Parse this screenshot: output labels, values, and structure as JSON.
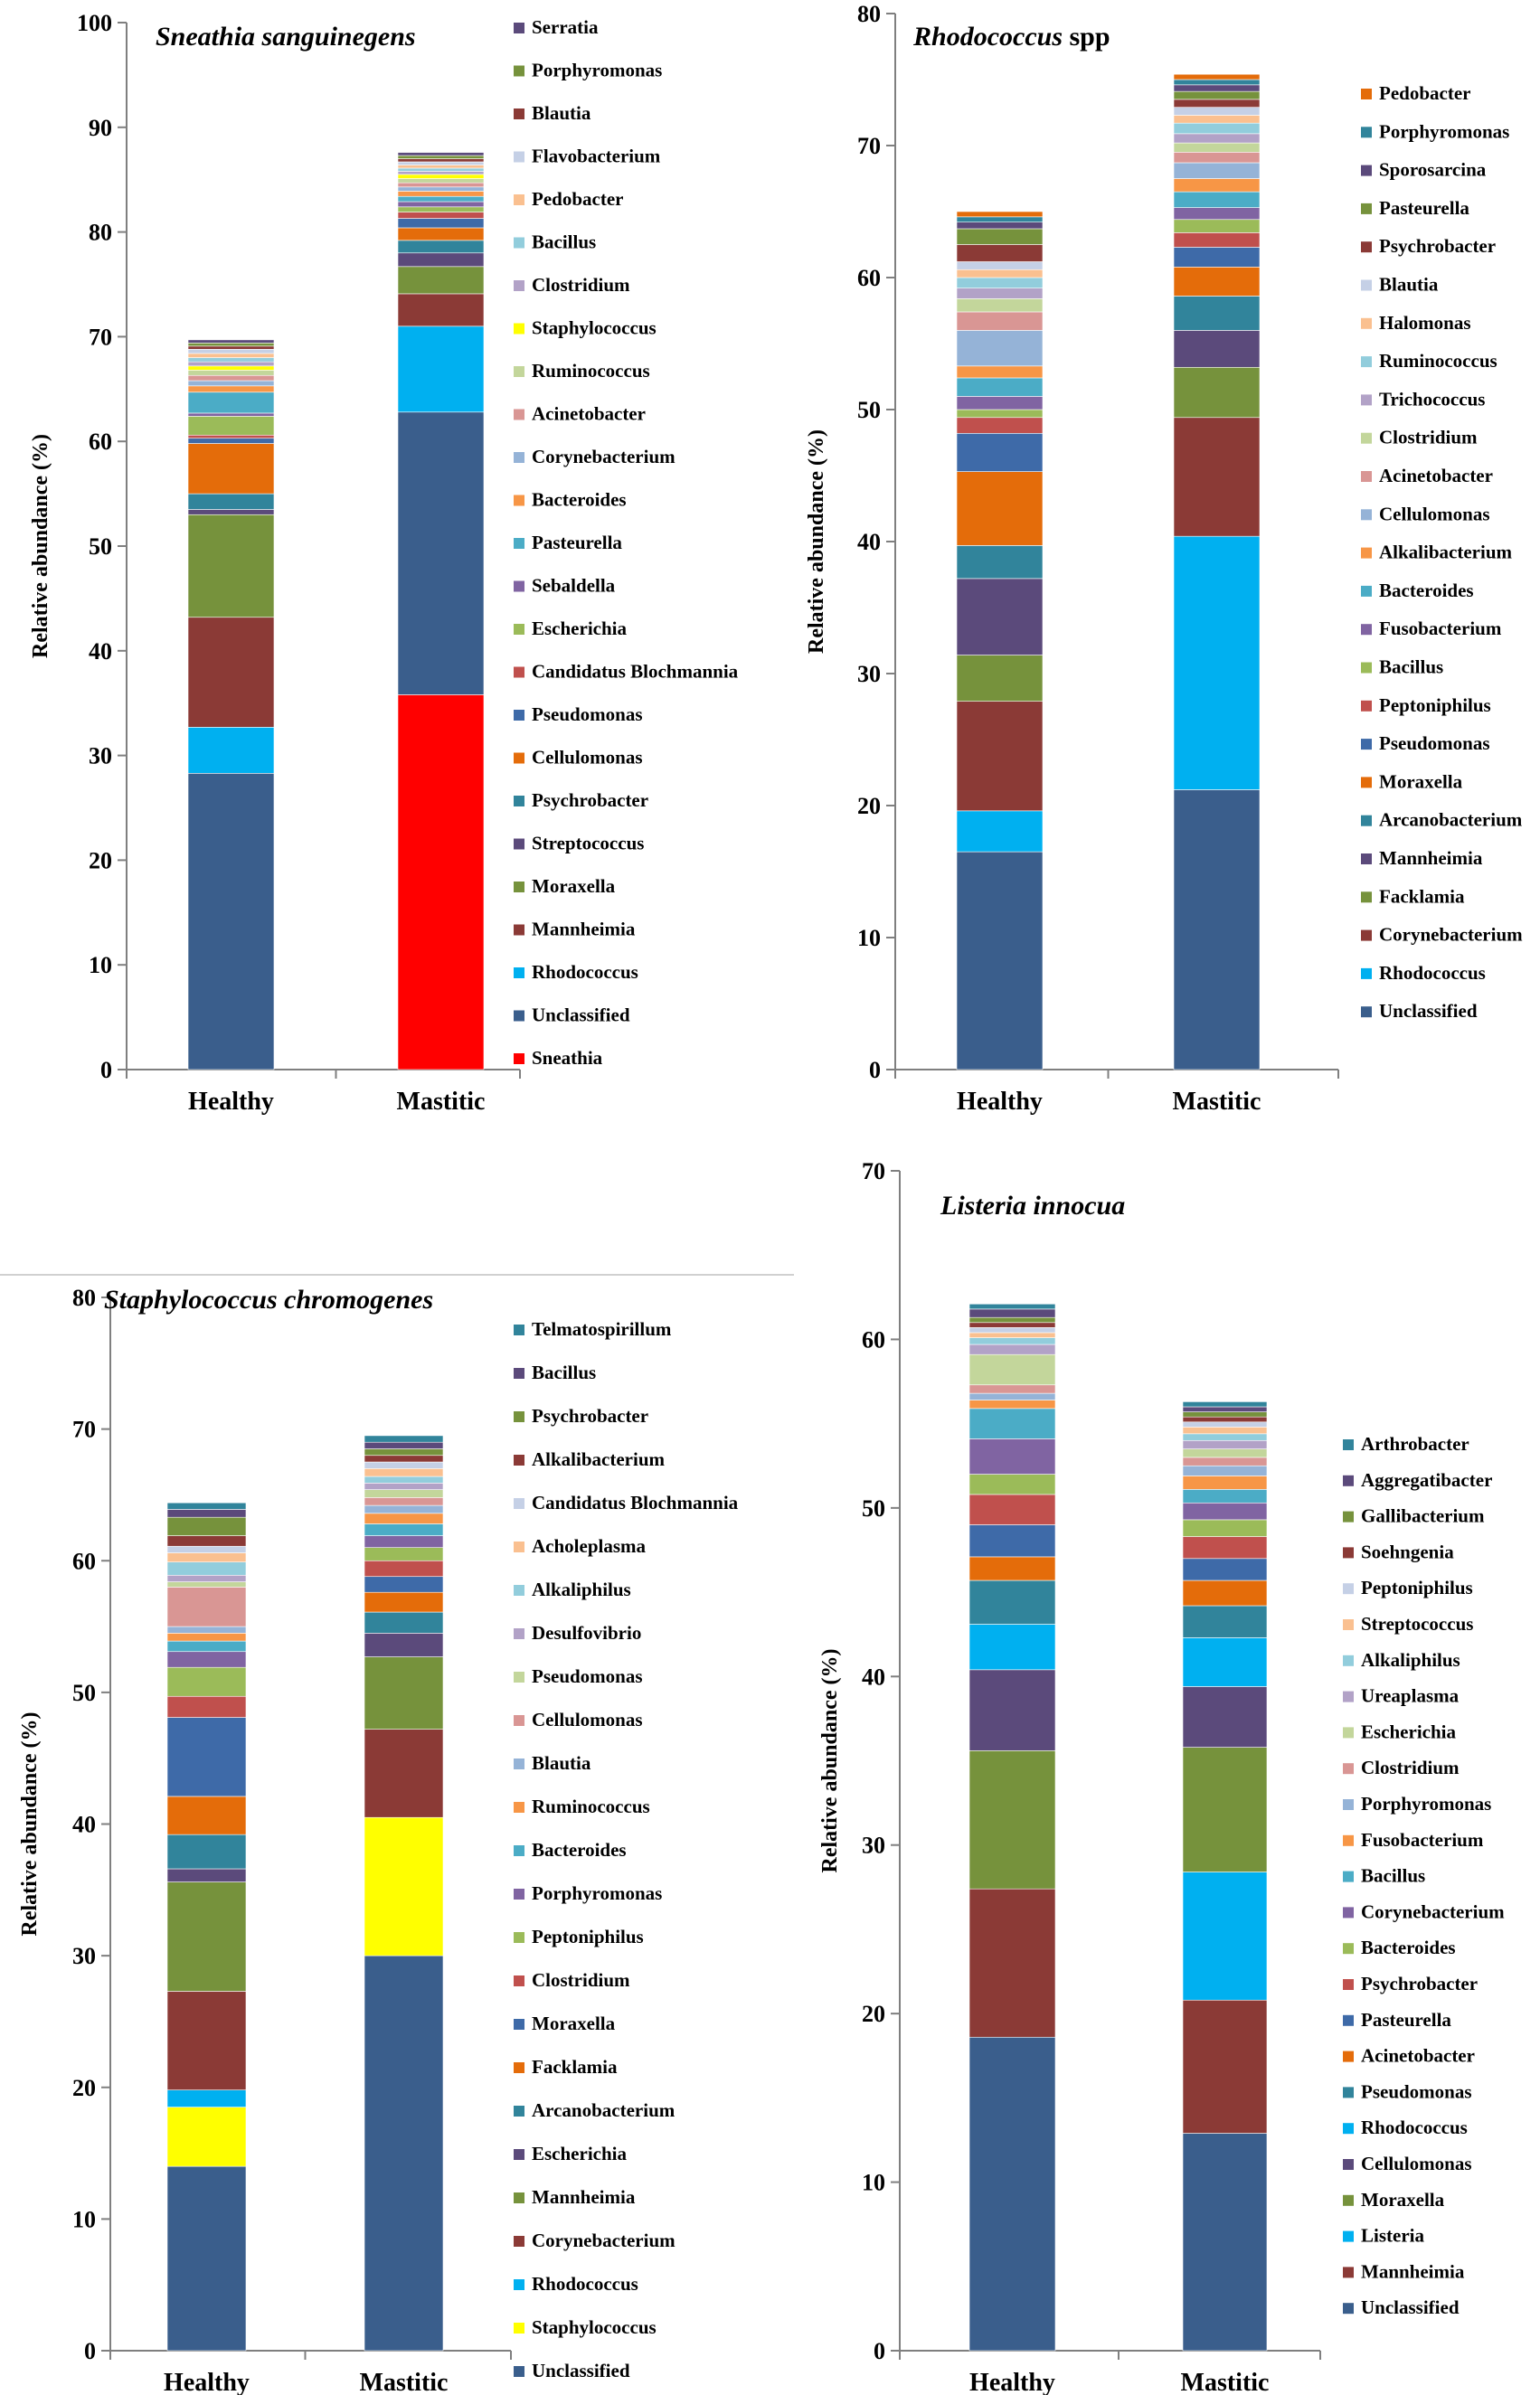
{
  "colors": {
    "Unclassified": "#3a5e8c",
    "Sneathia": "#ff0000",
    "Rhodococcus": "#00b0f0",
    "Staphylococcus": "#ffff00",
    "Listeria": "#00b0f0",
    "palette": [
      "#8b3a36",
      "#76923c",
      "#5b4a7b",
      "#31849b",
      "#e46c0a",
      "#3e6aa8",
      "#c0504d",
      "#9bbb59",
      "#8064a2",
      "#4bacc6",
      "#f79646",
      "#95b3d7",
      "#d99694",
      "#c3d69b",
      "#b2a2c7",
      "#92cddc",
      "#fac090",
      "#c5d0e6"
    ]
  },
  "chart_data": [
    {
      "type": "bar",
      "stacked": true,
      "title_italic": "Sneathia sanguinegens",
      "title_rest": "",
      "ylabel": "Relative abundance (%)",
      "ylim": [
        0,
        100
      ],
      "yticks": [
        0,
        10,
        20,
        30,
        40,
        50,
        60,
        70,
        80,
        90,
        100
      ],
      "categories": [
        "Healthy",
        "Mastitic"
      ],
      "series": [
        {
          "name": "Sneathia",
          "values": [
            0,
            35.8
          ]
        },
        {
          "name": "Unclassified",
          "values": [
            28.3,
            27.0
          ]
        },
        {
          "name": "Rhodococcus",
          "values": [
            4.4,
            8.2
          ]
        },
        {
          "name": "Mannheimia",
          "values": [
            10.5,
            3.1
          ]
        },
        {
          "name": "Moraxella",
          "values": [
            9.8,
            2.6
          ]
        },
        {
          "name": "Streptococcus",
          "values": [
            0.5,
            1.3
          ]
        },
        {
          "name": "Psychrobacter",
          "values": [
            1.5,
            1.2
          ]
        },
        {
          "name": "Cellulomonas",
          "values": [
            4.8,
            1.2
          ]
        },
        {
          "name": "Pseudomonas",
          "values": [
            0.5,
            0.9
          ]
        },
        {
          "name": "Candidatus Blochmannia",
          "values": [
            0.3,
            0.6
          ]
        },
        {
          "name": "Escherichia",
          "values": [
            1.8,
            0.5
          ]
        },
        {
          "name": "Sebaldella",
          "values": [
            0.3,
            0.5
          ]
        },
        {
          "name": "Pasteurella",
          "values": [
            2.0,
            0.5
          ]
        },
        {
          "name": "Bacteroides",
          "values": [
            0.6,
            0.5
          ]
        },
        {
          "name": "Corynebacterium",
          "values": [
            0.5,
            0.4
          ]
        },
        {
          "name": "Acinetobacter",
          "values": [
            0.5,
            0.4
          ]
        },
        {
          "name": "Ruminococcus",
          "values": [
            0.5,
            0.4
          ]
        },
        {
          "name": "Staphylococcus",
          "values": [
            0.4,
            0.4
          ]
        },
        {
          "name": "Clostridium",
          "values": [
            0.4,
            0.3
          ]
        },
        {
          "name": "Bacillus",
          "values": [
            0.4,
            0.3
          ]
        },
        {
          "name": "Pedobacter",
          "values": [
            0.4,
            0.3
          ]
        },
        {
          "name": "Flavobacterium",
          "values": [
            0.4,
            0.3
          ]
        },
        {
          "name": "Blautia",
          "values": [
            0.3,
            0.3
          ]
        },
        {
          "name": "Porphyromonas",
          "values": [
            0.3,
            0.3
          ]
        },
        {
          "name": "Serratia",
          "values": [
            0.3,
            0.3
          ]
        }
      ]
    },
    {
      "type": "bar",
      "stacked": true,
      "title_italic": "Rhodococcus",
      "title_rest": " spp",
      "ylabel": "Relative abundance (%)",
      "ylim": [
        0,
        80
      ],
      "yticks": [
        0,
        10,
        20,
        30,
        40,
        50,
        60,
        70,
        80
      ],
      "categories": [
        "Healthy",
        "Mastitic"
      ],
      "series": [
        {
          "name": "Unclassified",
          "values": [
            16.5,
            21.2
          ]
        },
        {
          "name": "Rhodococcus",
          "values": [
            3.1,
            19.2
          ]
        },
        {
          "name": "Corynebacterium",
          "values": [
            8.3,
            9.0
          ]
        },
        {
          "name": "Facklamia",
          "values": [
            3.5,
            3.8
          ]
        },
        {
          "name": "Mannheimia",
          "values": [
            5.8,
            2.8
          ]
        },
        {
          "name": "Arcanobacterium",
          "values": [
            2.5,
            2.6
          ]
        },
        {
          "name": "Moraxella",
          "values": [
            5.6,
            2.2
          ]
        },
        {
          "name": "Pseudomonas",
          "values": [
            2.9,
            1.5
          ]
        },
        {
          "name": "Peptoniphilus",
          "values": [
            1.2,
            1.1
          ]
        },
        {
          "name": "Bacillus",
          "values": [
            0.6,
            1.0
          ]
        },
        {
          "name": "Fusobacterium",
          "values": [
            1.0,
            0.9
          ]
        },
        {
          "name": "Bacteroides",
          "values": [
            1.4,
            1.2
          ]
        },
        {
          "name": "Alkalibacterium",
          "values": [
            0.9,
            1.0
          ]
        },
        {
          "name": "Cellulomonas",
          "values": [
            2.7,
            1.2
          ]
        },
        {
          "name": "Acinetobacter",
          "values": [
            1.4,
            0.8
          ]
        },
        {
          "name": "Clostridium",
          "values": [
            1.0,
            0.7
          ]
        },
        {
          "name": "Trichococcus",
          "values": [
            0.8,
            0.7
          ]
        },
        {
          "name": "Ruminococcus",
          "values": [
            0.8,
            0.8
          ]
        },
        {
          "name": "Halomonas",
          "values": [
            0.6,
            0.6
          ]
        },
        {
          "name": "Blautia",
          "values": [
            0.6,
            0.6
          ]
        },
        {
          "name": "Psychrobacter",
          "values": [
            1.3,
            0.6
          ]
        },
        {
          "name": "Pasteurella",
          "values": [
            1.2,
            0.6
          ]
        },
        {
          "name": "Sporosarcina",
          "values": [
            0.5,
            0.5
          ]
        },
        {
          "name": "Porphyromonas",
          "values": [
            0.4,
            0.4
          ]
        },
        {
          "name": "Pedobacter",
          "values": [
            0.4,
            0.4
          ]
        }
      ]
    },
    {
      "type": "bar",
      "stacked": true,
      "title_italic": "Staphylococcus chromogenes",
      "title_rest": "",
      "ylabel": "Relative abundance (%)",
      "ylim": [
        0,
        80
      ],
      "yticks": [
        0,
        10,
        20,
        30,
        40,
        50,
        60,
        70,
        80
      ],
      "categories": [
        "Healthy",
        "Mastitic"
      ],
      "series": [
        {
          "name": "Unclassified",
          "values": [
            14.0,
            30.0
          ]
        },
        {
          "name": "Staphylococcus",
          "values": [
            4.5,
            10.5
          ]
        },
        {
          "name": "Rhodococcus",
          "values": [
            1.3,
            0
          ]
        },
        {
          "name": "Corynebacterium",
          "values": [
            7.5,
            6.7
          ]
        },
        {
          "name": "Mannheimia",
          "values": [
            8.3,
            5.5
          ]
        },
        {
          "name": "Escherichia",
          "values": [
            1.0,
            1.8
          ]
        },
        {
          "name": "Arcanobacterium",
          "values": [
            2.6,
            1.6
          ]
        },
        {
          "name": "Facklamia",
          "values": [
            2.9,
            1.5
          ]
        },
        {
          "name": "Moraxella",
          "values": [
            6.0,
            1.2
          ]
        },
        {
          "name": "Clostridium",
          "values": [
            1.6,
            1.2
          ]
        },
        {
          "name": "Peptoniphilus",
          "values": [
            2.2,
            1.0
          ]
        },
        {
          "name": "Porphyromonas",
          "values": [
            1.2,
            0.9
          ]
        },
        {
          "name": "Bacteroides",
          "values": [
            0.8,
            0.9
          ]
        },
        {
          "name": "Ruminococcus",
          "values": [
            0.6,
            0.8
          ]
        },
        {
          "name": "Blautia",
          "values": [
            0.5,
            0.6
          ]
        },
        {
          "name": "Cellulomonas",
          "values": [
            3.0,
            0.6
          ]
        },
        {
          "name": "Pseudomonas",
          "values": [
            0.4,
            0.6
          ]
        },
        {
          "name": "Desulfovibrio",
          "values": [
            0.5,
            0.5
          ]
        },
        {
          "name": "Alkaliphilus",
          "values": [
            1.0,
            0.5
          ]
        },
        {
          "name": "Acholeplasma",
          "values": [
            0.7,
            0.6
          ]
        },
        {
          "name": "Candidatus Blochmannia",
          "values": [
            0.5,
            0.5
          ]
        },
        {
          "name": "Alkalibacterium",
          "values": [
            0.8,
            0.5
          ]
        },
        {
          "name": "Psychrobacter",
          "values": [
            1.4,
            0.5
          ]
        },
        {
          "name": "Bacillus",
          "values": [
            0.6,
            0.5
          ]
        },
        {
          "name": "Telmatospirillum",
          "values": [
            0.5,
            0.5
          ]
        }
      ]
    },
    {
      "type": "bar",
      "stacked": true,
      "title_italic": "Listeria innocua",
      "title_rest": "",
      "ylabel": "Relative abundance (%)",
      "ylim": [
        0,
        70
      ],
      "yticks": [
        0,
        10,
        20,
        30,
        40,
        50,
        60,
        70
      ],
      "categories": [
        "Healthy",
        "Mastitic"
      ],
      "series": [
        {
          "name": "Unclassified",
          "values": [
            18.6,
            12.9
          ]
        },
        {
          "name": "Mannheimia",
          "values": [
            8.8,
            7.9
          ]
        },
        {
          "name": "Listeria",
          "values": [
            0,
            7.6
          ]
        },
        {
          "name": "Moraxella",
          "values": [
            8.2,
            7.4
          ]
        },
        {
          "name": "Cellulomonas",
          "values": [
            4.8,
            3.6
          ]
        },
        {
          "name": "Rhodococcus",
          "values": [
            2.7,
            2.9
          ]
        },
        {
          "name": "Pseudomonas",
          "values": [
            2.6,
            1.9
          ]
        },
        {
          "name": "Acinetobacter",
          "values": [
            1.4,
            1.5
          ]
        },
        {
          "name": "Pasteurella",
          "values": [
            1.9,
            1.3
          ]
        },
        {
          "name": "Psychrobacter",
          "values": [
            1.8,
            1.3
          ]
        },
        {
          "name": "Bacteroides",
          "values": [
            1.2,
            1.0
          ]
        },
        {
          "name": "Corynebacterium",
          "values": [
            2.1,
            1.0
          ]
        },
        {
          "name": "Bacillus",
          "values": [
            1.8,
            0.8
          ]
        },
        {
          "name": "Fusobacterium",
          "values": [
            0.5,
            0.8
          ]
        },
        {
          "name": "Porphyromonas",
          "values": [
            0.4,
            0.6
          ]
        },
        {
          "name": "Clostridium",
          "values": [
            0.5,
            0.5
          ]
        },
        {
          "name": "Escherichia",
          "values": [
            1.8,
            0.5
          ]
        },
        {
          "name": "Ureaplasma",
          "values": [
            0.6,
            0.5
          ]
        },
        {
          "name": "Alkaliphilus",
          "values": [
            0.4,
            0.4
          ]
        },
        {
          "name": "Streptococcus",
          "values": [
            0.3,
            0.4
          ]
        },
        {
          "name": "Peptoniphilus",
          "values": [
            0.3,
            0.3
          ]
        },
        {
          "name": "Soehngenia",
          "values": [
            0.3,
            0.3
          ]
        },
        {
          "name": "Gallibacterium",
          "values": [
            0.3,
            0.3
          ]
        },
        {
          "name": "Aggregatibacter",
          "values": [
            0.5,
            0.3
          ]
        },
        {
          "name": "Arthrobacter",
          "values": [
            0.3,
            0.3
          ]
        }
      ]
    }
  ]
}
